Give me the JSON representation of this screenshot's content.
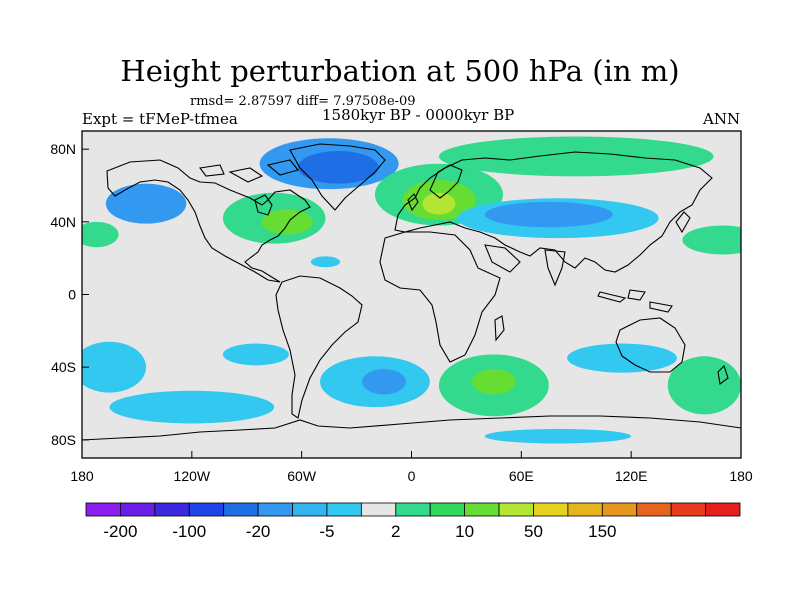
{
  "header": {
    "title": "Height perturbation at 500 hPa (in m)",
    "stats": "rmsd= 2.87597 diff= 7.97508e-09",
    "expt": "Expt = tFMeP-tfmea",
    "period": "1580kyr BP - 0000kyr BP",
    "season": "ANN"
  },
  "map": {
    "lon_range": [
      -180,
      180
    ],
    "lat_range": [
      -90,
      90
    ],
    "x_ticks": [
      {
        "lon": -180,
        "label": "180"
      },
      {
        "lon": -120,
        "label": "120W"
      },
      {
        "lon": -60,
        "label": "60W"
      },
      {
        "lon": 0,
        "label": "0"
      },
      {
        "lon": 60,
        "label": "60E"
      },
      {
        "lon": 120,
        "label": "120E"
      },
      {
        "lon": 180,
        "label": "180"
      }
    ],
    "y_ticks": [
      {
        "lat": 80,
        "label": "80N"
      },
      {
        "lat": 40,
        "label": "40N"
      },
      {
        "lat": 0,
        "label": "0"
      },
      {
        "lat": -40,
        "label": "40S"
      },
      {
        "lat": -80,
        "label": "80S"
      }
    ],
    "background_color": "#e6e6e6",
    "anomalies": [
      {
        "name": "greenland-low",
        "lon": -45,
        "lat": 72,
        "rlon": 38,
        "rlat": 14,
        "level": "#3399f0"
      },
      {
        "name": "greenland-core",
        "lon": -40,
        "lat": 70,
        "rlon": 22,
        "rlat": 9,
        "level": "#1e6ee6"
      },
      {
        "name": "alaska-low",
        "lon": -145,
        "lat": 50,
        "rlon": 22,
        "rlat": 11,
        "level": "#3399f0"
      },
      {
        "name": "namerica-high",
        "lon": -75,
        "lat": 42,
        "rlon": 28,
        "rlat": 14,
        "level": "#33d98c"
      },
      {
        "name": "namerica-core",
        "lon": -68,
        "lat": 40,
        "rlon": 14,
        "rlat": 7,
        "level": "#66dd33"
      },
      {
        "name": "europe-high",
        "lon": 15,
        "lat": 55,
        "rlon": 35,
        "rlat": 17,
        "level": "#33d98c"
      },
      {
        "name": "europe-core",
        "lon": 15,
        "lat": 52,
        "rlon": 20,
        "rlat": 11,
        "level": "#66dd33"
      },
      {
        "name": "europe-peak",
        "lon": 15,
        "lat": 50,
        "rlon": 9,
        "rlat": 6,
        "level": "#b3e633"
      },
      {
        "name": "arctic-high",
        "lon": 90,
        "lat": 76,
        "rlon": 75,
        "rlat": 11,
        "level": "#33d98c"
      },
      {
        "name": "asia-low",
        "lon": 80,
        "lat": 42,
        "rlon": 55,
        "rlat": 11,
        "level": "#33c8f0"
      },
      {
        "name": "asia-low-core",
        "lon": 75,
        "lat": 44,
        "rlon": 35,
        "rlat": 7,
        "level": "#3399f0"
      },
      {
        "name": "pacific-high-west",
        "lon": -172,
        "lat": 33,
        "rlon": 12,
        "rlat": 7,
        "level": "#33d98c"
      },
      {
        "name": "pacific-high-east",
        "lon": 170,
        "lat": 30,
        "rlon": 22,
        "rlat": 8,
        "level": "#33d98c"
      },
      {
        "name": "atlantic-small-low",
        "lon": -47,
        "lat": 18,
        "rlon": 8,
        "rlat": 3,
        "level": "#33c8f0"
      },
      {
        "name": "spacific-low-west",
        "lon": -165,
        "lat": -40,
        "rlon": 20,
        "rlat": 14,
        "level": "#33c8f0"
      },
      {
        "name": "spacific-low-east",
        "lon": -85,
        "lat": -33,
        "rlon": 18,
        "rlat": 6,
        "level": "#33c8f0"
      },
      {
        "name": "satlantic-low",
        "lon": -20,
        "lat": -48,
        "rlon": 30,
        "rlat": 14,
        "level": "#33c8f0"
      },
      {
        "name": "satlantic-low-core",
        "lon": -15,
        "lat": -48,
        "rlon": 12,
        "rlat": 7,
        "level": "#3399f0"
      },
      {
        "name": "sindian-high",
        "lon": 45,
        "lat": -50,
        "rlon": 30,
        "rlat": 17,
        "level": "#33d98c"
      },
      {
        "name": "sindian-high-core",
        "lon": 45,
        "lat": -48,
        "rlon": 12,
        "rlat": 7,
        "level": "#66dd33"
      },
      {
        "name": "australia-low",
        "lon": 115,
        "lat": -35,
        "rlon": 30,
        "rlat": 8,
        "level": "#33c8f0"
      },
      {
        "name": "southern-ocean-low",
        "lon": -120,
        "lat": -62,
        "rlon": 45,
        "rlat": 9,
        "level": "#33c8f0"
      },
      {
        "name": "tasman-high",
        "lon": 160,
        "lat": -50,
        "rlon": 20,
        "rlat": 16,
        "level": "#33d98c"
      },
      {
        "name": "antarctic-low",
        "lon": 80,
        "lat": -78,
        "rlon": 40,
        "rlat": 4,
        "level": "#33c8f0"
      }
    ]
  },
  "colorbar": {
    "colors": [
      "#8c1ef0",
      "#6a1ee6",
      "#3c28e0",
      "#1e46e6",
      "#1e6ee6",
      "#3399f0",
      "#33b3f0",
      "#33c8f0",
      "#e6e6e6",
      "#33d98c",
      "#33d95a",
      "#66dd33",
      "#b3e633",
      "#e6d21e",
      "#e6b41e",
      "#e6961e",
      "#e6641e",
      "#e63c1e",
      "#e61e1e"
    ],
    "labels": [
      {
        "after_box": 1,
        "text": "-200"
      },
      {
        "after_box": 3,
        "text": "-100"
      },
      {
        "after_box": 5,
        "text": "-20"
      },
      {
        "after_box": 7,
        "text": "-5"
      },
      {
        "after_box": 9,
        "text": "2"
      },
      {
        "after_box": 11,
        "text": "10"
      },
      {
        "after_box": 13,
        "text": "50"
      },
      {
        "after_box": 15,
        "text": "150"
      }
    ]
  }
}
